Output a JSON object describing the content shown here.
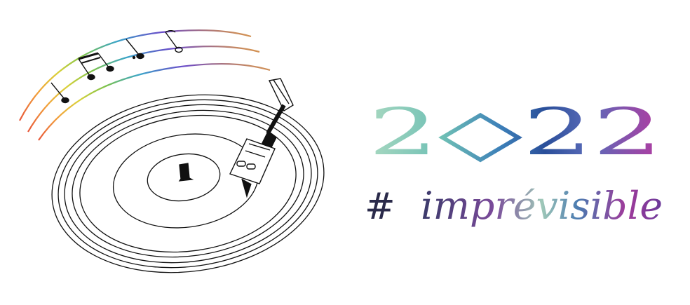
{
  "illustration": {
    "subject": "record-player"
  },
  "year": {
    "label": "2◇22"
  },
  "hashtag": {
    "symbol": "#",
    "word": "imprévisible"
  },
  "colors": {
    "ink": "#111111",
    "rainbow": [
      "#e8573a",
      "#f2a33a",
      "#f2d43a",
      "#7cc24a",
      "#3aa5c9",
      "#4a5bc9",
      "#8a4ac9",
      "#c94aa5"
    ],
    "year_gradient": [
      "#a8d8c0",
      "#6fc0b5",
      "#3c7fb8",
      "#2a4f9a",
      "#5a3a9a",
      "#8a3aa0",
      "#b43aa0"
    ],
    "tag_gradient": [
      "#4a4a7a",
      "#6a4a9a",
      "#9a4a9a",
      "#8fc0b0",
      "#4a7ab0",
      "#9a3a9a",
      "#7a3a9a"
    ]
  }
}
